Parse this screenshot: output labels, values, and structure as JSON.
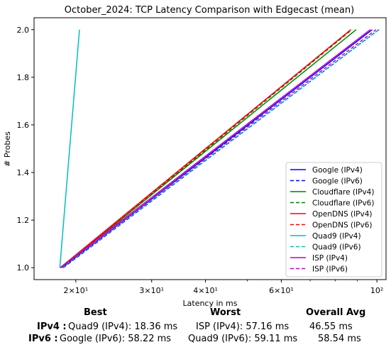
{
  "chart_data": {
    "type": "line",
    "title": "October_2024: TCP Latency Comparison with Edgecast (mean)",
    "xlabel": "Latency in ms",
    "ylabel": "# Probes",
    "xscale": "log",
    "xlim": [
      16.0,
      105.0
    ],
    "ylim": [
      0.95,
      2.05
    ],
    "x_ticks": [
      {
        "value": 20,
        "label": "2×10¹"
      },
      {
        "value": 30,
        "label": "3×10¹"
      },
      {
        "value": 40,
        "label": "4×10¹"
      },
      {
        "value": 60,
        "label": "6×10¹"
      },
      {
        "value": 100,
        "label": "10²"
      }
    ],
    "x_minor_ticks": [
      50,
      70,
      80,
      90
    ],
    "y_ticks": [
      {
        "value": 1.0,
        "label": "1.0"
      },
      {
        "value": 1.2,
        "label": "1.2"
      },
      {
        "value": 1.4,
        "label": "1.4"
      },
      {
        "value": 1.6,
        "label": "1.6"
      },
      {
        "value": 1.8,
        "label": "1.8"
      },
      {
        "value": 2.0,
        "label": "2.0"
      }
    ],
    "grid": false,
    "legend_position": "lower-right",
    "series": [
      {
        "name": "Google (IPv4)",
        "color": "#0000ff",
        "dash": "solid",
        "x": [
          18.6,
          97.5
        ],
        "y": [
          1.0,
          2.0
        ]
      },
      {
        "name": "Google (IPv6)",
        "color": "#0000ff",
        "dash": "dashed",
        "x": [
          18.7,
          101.0
        ],
        "y": [
          1.0,
          2.0
        ]
      },
      {
        "name": "Cloudflare (IPv4)",
        "color": "#008000",
        "dash": "solid",
        "x": [
          18.5,
          89.5
        ],
        "y": [
          1.0,
          2.0
        ]
      },
      {
        "name": "Cloudflare (IPv6)",
        "color": "#008000",
        "dash": "dashed",
        "x": [
          18.6,
          87.5
        ],
        "y": [
          1.0,
          2.0
        ]
      },
      {
        "name": "OpenDNS (IPv4)",
        "color": "#ff0000",
        "dash": "solid",
        "x": [
          18.4,
          87.0
        ],
        "y": [
          1.0,
          2.0
        ]
      },
      {
        "name": "OpenDNS (IPv6)",
        "color": "#ff0000",
        "dash": "dashed",
        "x": [
          18.5,
          87.0
        ],
        "y": [
          1.0,
          2.0
        ]
      },
      {
        "name": "Quad9 (IPv4)",
        "color": "#00bfbf",
        "dash": "solid",
        "x": [
          18.36,
          20.4
        ],
        "y": [
          1.0,
          2.0
        ]
      },
      {
        "name": "Quad9 (IPv6)",
        "color": "#00bfbf",
        "dash": "dashed",
        "x": [
          18.6,
          101.0
        ],
        "y": [
          1.0,
          2.0
        ]
      },
      {
        "name": "ISP (IPv4)",
        "color": "#bf00bf",
        "dash": "solid",
        "x": [
          18.4,
          96.5
        ],
        "y": [
          1.0,
          2.0
        ]
      },
      {
        "name": "ISP (IPv6)",
        "color": "#bf00bf",
        "dash": "dashed",
        "x": [
          18.5,
          99.5
        ],
        "y": [
          1.0,
          2.0
        ]
      }
    ]
  },
  "summary": {
    "headers": {
      "best": "Best",
      "worst": "Worst",
      "overall": "Overall Avg"
    },
    "ipv4": {
      "label": "IPv4 :",
      "best": "Quad9 (IPv4): 18.36 ms",
      "worst": "ISP (IPv4): 57.16 ms",
      "overall": "46.55 ms"
    },
    "ipv6": {
      "label": "IPv6 :",
      "best": "Google (IPv6): 58.22 ms",
      "worst": "Quad9 (IPv6): 59.11 ms",
      "overall": "58.54 ms"
    }
  }
}
